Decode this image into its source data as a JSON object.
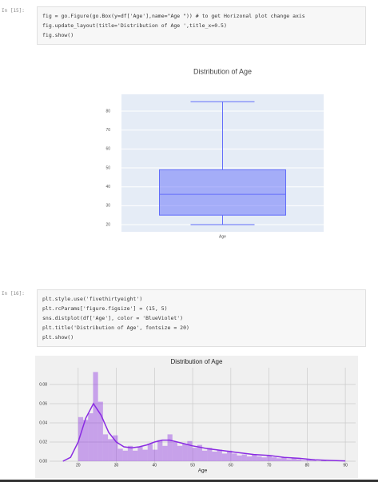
{
  "cells": [
    {
      "prompt": "In [15]:",
      "code": [
        "fig = go.Figure(go.Box(y=df['Age'],name=\"Age \")) # to get Horizonal plot change axis",
        "fig.update_layout(title='Distribution of Age ',title_x=0.5)",
        "fig.show()"
      ]
    },
    {
      "prompt": "In [16]:",
      "code": [
        "plt.style.use('fivethirtyeight')",
        "plt.rcParams['figure.figsize'] = (15, 5)",
        "sns.distplot(df['Age'], color = 'BlueViolet')",
        "plt.title('Distribution of Age', fontsize = 20)",
        "plt.show()"
      ]
    }
  ],
  "chart_data": [
    {
      "type": "box",
      "title": "Distribution of Age",
      "categories": [
        "Age"
      ],
      "color": "#636efa",
      "box": {
        "min": 20,
        "q1": 25,
        "median": 36,
        "q3": 49,
        "max": 85
      },
      "ylim": [
        16.2,
        88.9
      ],
      "yticks": [
        20,
        30,
        40,
        50,
        60,
        70,
        80
      ],
      "grid": true
    },
    {
      "type": "histogram",
      "title": "Distribution of Age",
      "xlabel": "Age",
      "color": "#8a2be2",
      "bins": [
        20,
        21.3,
        22.6,
        23.9,
        25.2,
        26.5,
        27.8,
        29.1,
        30.4,
        31.7,
        33,
        34.3,
        35.6,
        36.9,
        38.2,
        39.5,
        40.8,
        42.1,
        43.4,
        44.7,
        46,
        47.3,
        48.6,
        49.9,
        51.2,
        52.5,
        53.8,
        55.1,
        56.4,
        57.7,
        59,
        60.3,
        61.6,
        62.9,
        64.2,
        65.5,
        66.8,
        68.1,
        69.4,
        70.7,
        72,
        73.3,
        74.6,
        75.9,
        77.2,
        78.5,
        79.8,
        81.1,
        82.4,
        83.7,
        85
      ],
      "counts": [
        0.046,
        0.043,
        0.05,
        0.093,
        0.062,
        0.028,
        0.023,
        0.027,
        0.013,
        0.011,
        0.016,
        0.011,
        0.015,
        0.012,
        0.018,
        0.012,
        0.022,
        0.016,
        0.028,
        0.02,
        0.016,
        0.018,
        0.021,
        0.014,
        0.017,
        0.011,
        0.014,
        0.01,
        0.012,
        0.008,
        0.011,
        0.008,
        0.006,
        0.007,
        0.005,
        0.007,
        0.005,
        0.004,
        0.006,
        0.004,
        0.003,
        0.004,
        0.002,
        0.003,
        0.002,
        0.001,
        0.002,
        0.001,
        0,
        0.001
      ],
      "kde": {
        "x": [
          16,
          18,
          20,
          22,
          24,
          26,
          28,
          30,
          32,
          34,
          36,
          38,
          40,
          42,
          44,
          46,
          48,
          50,
          54,
          58,
          62,
          66,
          70,
          74,
          78,
          82,
          86,
          90
        ],
        "y": [
          0,
          0.004,
          0.02,
          0.045,
          0.06,
          0.048,
          0.03,
          0.02,
          0.015,
          0.014,
          0.015,
          0.017,
          0.02,
          0.022,
          0.022,
          0.02,
          0.018,
          0.016,
          0.013,
          0.011,
          0.009,
          0.007,
          0.006,
          0.004,
          0.003,
          0.0015,
          0.0008,
          0.0003
        ]
      },
      "xlim": [
        12.5,
        92.7
      ],
      "ylim": [
        -0.0025,
        0.0975
      ],
      "xticks": [
        20,
        30,
        40,
        50,
        60,
        70,
        80,
        90
      ],
      "yticks": [
        {
          "value": 0,
          "label": "0.00"
        },
        {
          "value": 0.02,
          "label": "0.02"
        },
        {
          "value": 0.04,
          "label": "0.04"
        },
        {
          "value": 0.06,
          "label": "0.06"
        },
        {
          "value": 0.08,
          "label": "0.08"
        }
      ],
      "grid": true
    }
  ]
}
